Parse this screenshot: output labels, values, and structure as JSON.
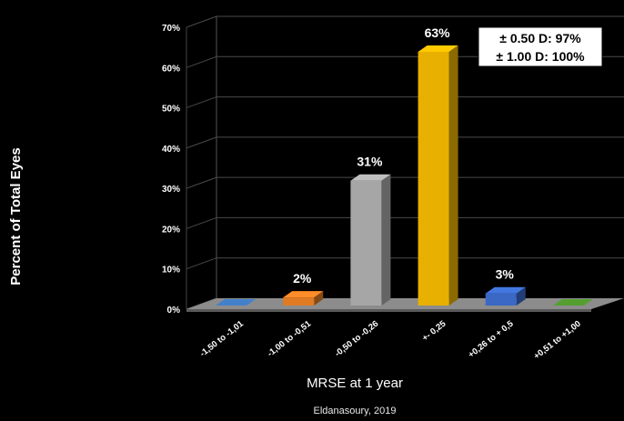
{
  "chart_data": {
    "type": "bar",
    "categories": [
      "-1,50 to -1,01",
      "-1,00 to -0,51",
      "-0,50 to -0,26",
      "+- 0,25",
      "+0,26 to + 0,5",
      "+0,51 to +1,00"
    ],
    "values": [
      0,
      2,
      31,
      63,
      3,
      0
    ],
    "data_labels": [
      "",
      "2%",
      "31%",
      "63%",
      "3%",
      ""
    ],
    "ylabel": "Percent of Total Eyes",
    "xlabel": "MRSE at 1 year",
    "yticks": [
      "0%",
      "10%",
      "20%",
      "30%",
      "40%",
      "50%",
      "60%",
      "70%"
    ],
    "ylim": [
      0,
      70
    ],
    "grid": true,
    "colors": [
      "#3a6fb0",
      "#e07b24",
      "#a6a6a6",
      "#e8b000",
      "#3a68c4",
      "#4a8a2a"
    ],
    "annotation": [
      "± 0.50 D: 97%",
      "± 1.00 D: 100%"
    ],
    "source": "Eldanasoury, 2019"
  }
}
